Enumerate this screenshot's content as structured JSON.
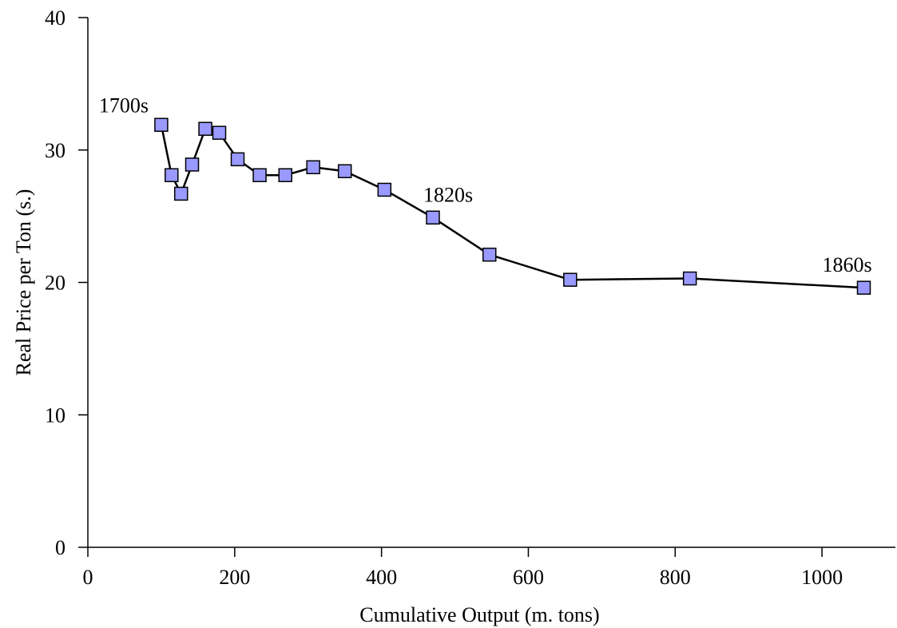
{
  "chart_data": {
    "type": "line",
    "title": "",
    "xlabel": "Cumulative Output (m. tons)",
    "ylabel": "Real Price per Ton (s.)",
    "xlim": [
      0,
      1100
    ],
    "ylim": [
      0,
      40
    ],
    "x_ticks": [
      0,
      200,
      400,
      600,
      800,
      1000
    ],
    "y_ticks": [
      0,
      10,
      20,
      30,
      40
    ],
    "grid": false,
    "legend": "none",
    "series": [
      {
        "line_color": "#000000",
        "marker": "square",
        "marker_color": "#9999ff",
        "marker_edge_color": "#000000",
        "points": [
          {
            "x": 100,
            "y": 31.9
          },
          {
            "x": 114,
            "y": 28.1
          },
          {
            "x": 127,
            "y": 26.7
          },
          {
            "x": 142,
            "y": 28.9
          },
          {
            "x": 160,
            "y": 31.6
          },
          {
            "x": 179,
            "y": 31.3
          },
          {
            "x": 204,
            "y": 29.3
          },
          {
            "x": 234,
            "y": 28.1
          },
          {
            "x": 269,
            "y": 28.1
          },
          {
            "x": 307,
            "y": 28.7
          },
          {
            "x": 350,
            "y": 28.4
          },
          {
            "x": 404,
            "y": 27.0
          },
          {
            "x": 470,
            "y": 24.9
          },
          {
            "x": 547,
            "y": 22.1
          },
          {
            "x": 657,
            "y": 20.2
          },
          {
            "x": 820,
            "y": 20.3
          },
          {
            "x": 1057,
            "y": 19.6
          }
        ]
      }
    ],
    "annotations": [
      {
        "text": "1700s",
        "x": 100,
        "y": 31.9
      },
      {
        "text": "1820s",
        "x": 470,
        "y": 24.9
      },
      {
        "text": "1860s",
        "x": 1057,
        "y": 19.6
      }
    ]
  }
}
